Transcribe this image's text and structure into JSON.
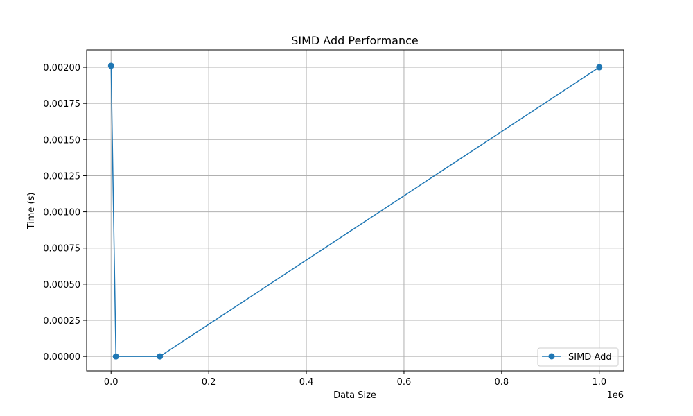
{
  "chart_data": {
    "type": "line",
    "title": "SIMD Add Performance",
    "xlabel": "Data Size",
    "ylabel": "Time (s)",
    "x_offset_label": "1e6",
    "xlim": [
      -50000,
      1050000
    ],
    "ylim": [
      -0.0001,
      0.00212
    ],
    "x_ticks": [
      0,
      200000,
      400000,
      600000,
      800000,
      1000000
    ],
    "x_tick_labels": [
      "0.0",
      "0.2",
      "0.4",
      "0.6",
      "0.8",
      "1.0"
    ],
    "y_ticks": [
      0,
      0.00025,
      0.0005,
      0.00075,
      0.001,
      0.00125,
      0.0015,
      0.00175,
      0.002
    ],
    "y_tick_labels": [
      "0.00000",
      "0.00025",
      "0.00050",
      "0.00075",
      "0.00100",
      "0.00125",
      "0.00150",
      "0.00175",
      "0.00200"
    ],
    "grid": true,
    "legend_position": "lower-right",
    "series": [
      {
        "name": "SIMD Add",
        "color": "#1f77b4",
        "marker": "circle",
        "x": [
          100,
          10000,
          100000,
          1000000
        ],
        "y": [
          0.00201,
          0.0,
          0.0,
          0.002
        ]
      }
    ]
  }
}
